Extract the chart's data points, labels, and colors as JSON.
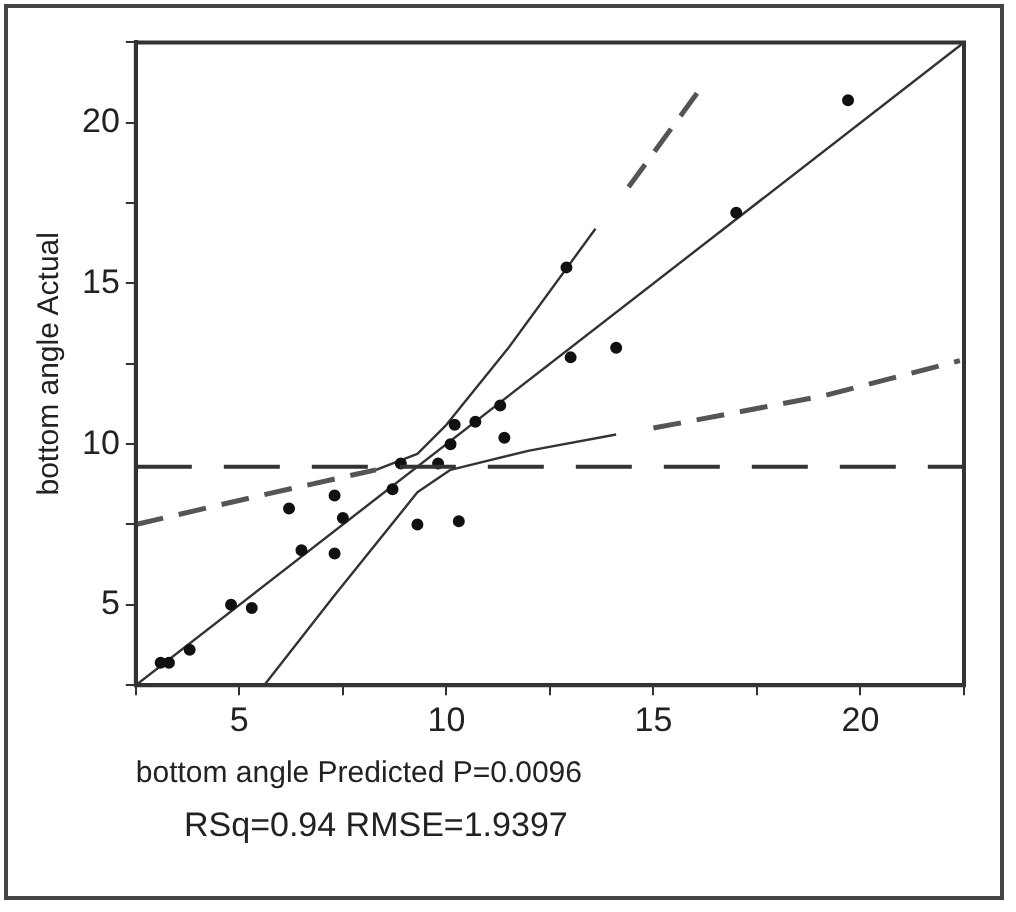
{
  "chart_data": {
    "type": "scatter",
    "xlabel": "bottom angle Predicted P=0.0096",
    "ylabel": "bottom angle Actual",
    "annotations": [
      "RSq=0.94 RMSE=1.9397"
    ],
    "xlim": [
      2.5,
      22.5
    ],
    "ylim": [
      2.5,
      22.5
    ],
    "xticks": [
      {
        "value": 2.5,
        "label": null
      },
      5,
      {
        "value": 7.5,
        "label": null
      },
      10,
      {
        "value": 12.5,
        "label": null
      },
      15,
      {
        "value": 17.5,
        "label": null
      },
      20,
      {
        "value": 22.5,
        "label": null
      }
    ],
    "yticks": [
      {
        "value": 2.5,
        "label": null
      },
      5,
      {
        "value": 7.5,
        "label": null
      },
      10,
      {
        "value": 12.5,
        "label": null
      },
      15,
      {
        "value": 17.5,
        "label": null
      },
      20,
      {
        "value": 22.5,
        "label": null
      }
    ],
    "grid": false,
    "legend": false,
    "series": [
      {
        "marker": "circle",
        "color": "#111111",
        "x": [
          19.7,
          17.0,
          12.9,
          14.1,
          13.0,
          11.3,
          10.2,
          10.7,
          10.1,
          11.4,
          8.9,
          9.8,
          8.7,
          6.2,
          7.3,
          7.5,
          9.3,
          10.3,
          6.5,
          7.3,
          4.8,
          5.3,
          3.8,
          3.1,
          3.3
        ],
        "values": [
          20.7,
          17.2,
          15.5,
          13.0,
          12.7,
          11.2,
          10.6,
          10.7,
          10.0,
          10.2,
          9.4,
          9.4,
          8.6,
          8.0,
          8.4,
          7.7,
          7.5,
          7.6,
          6.7,
          6.6,
          5.0,
          4.9,
          3.6,
          3.2,
          3.2
        ]
      },
      {
        "type": "line",
        "marker": "none",
        "line_style": "solid",
        "color": "#333333",
        "x": [
          2.5,
          22.5
        ],
        "values": [
          2.5,
          22.5
        ]
      },
      {
        "type": "line",
        "marker": "none",
        "line_style": "dashed",
        "color": "#555555",
        "x": [
          2.5,
          5.5,
          8.3
        ],
        "values": [
          7.5,
          8.4,
          9.2
        ]
      },
      {
        "type": "line",
        "marker": "none",
        "line_style": "solid",
        "color": "#333333",
        "x": [
          8.3,
          9.3,
          10.0,
          11.5,
          13.6
        ],
        "values": [
          9.2,
          9.7,
          10.6,
          13.0,
          16.7
        ]
      },
      {
        "type": "line",
        "marker": "none",
        "line_style": "dashed",
        "color": "#555555",
        "x": [
          14.4,
          16.1
        ],
        "values": [
          18.0,
          21.0
        ]
      },
      {
        "type": "line",
        "marker": "none",
        "line_style": "solid",
        "color": "#333333",
        "x": [
          5.6,
          7.3,
          9.3,
          10.1,
          12.0,
          14.1
        ],
        "values": [
          2.5,
          5.3,
          8.5,
          9.2,
          9.8,
          10.3
        ]
      },
      {
        "type": "line",
        "marker": "none",
        "line_style": "dashed",
        "color": "#555555",
        "x": [
          15.0,
          19.1,
          22.4
        ],
        "values": [
          10.5,
          11.5,
          12.6
        ]
      }
    ],
    "ref_lines": [
      {
        "axis": "y",
        "value": 9.3,
        "color": "#333333",
        "line_style": "dashed"
      }
    ]
  }
}
